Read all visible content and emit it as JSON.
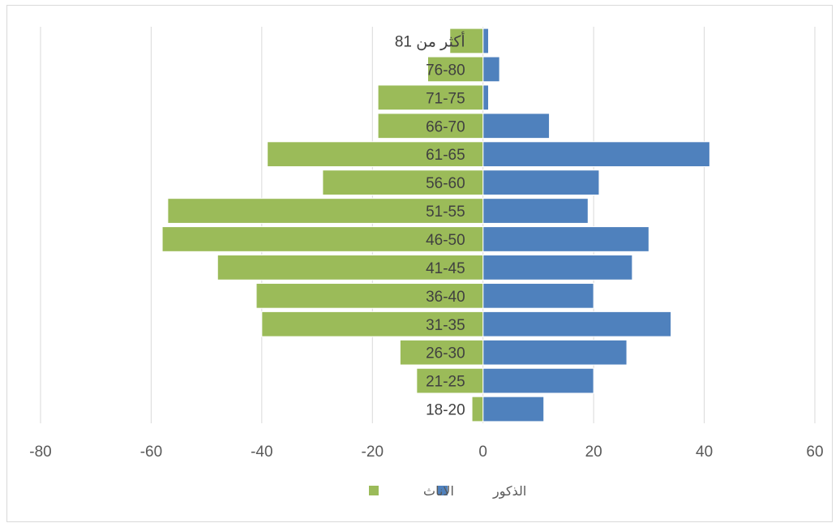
{
  "chart_data": {
    "type": "bar",
    "orientation": "horizontal",
    "title": "",
    "xlabel": "",
    "ylabel": "",
    "xlim": [
      -80,
      60
    ],
    "xticks": [
      -80,
      -60,
      -40,
      -20,
      0,
      20,
      40,
      60
    ],
    "grid": "vertical",
    "legend_position": "bottom",
    "categories": [
      "18-20",
      "21-25",
      "26-30",
      "31-35",
      "36-40",
      "41-45",
      "46-50",
      "51-55",
      "56-60",
      "61-65",
      "66-70",
      "71-75",
      "76-80",
      "81 أكثر من"
    ],
    "series": [
      {
        "name": "الذكور",
        "color": "#4f81bd",
        "values": [
          11,
          20,
          26,
          34,
          20,
          27,
          30,
          19,
          21,
          41,
          12,
          1,
          3,
          1
        ]
      },
      {
        "name": "الاناث",
        "color": "#9bbb59",
        "values": [
          -2,
          -12,
          -15,
          -40,
          -41,
          -48,
          -58,
          -57,
          -29,
          -39,
          -19,
          -19,
          -10,
          -6
        ]
      }
    ]
  }
}
